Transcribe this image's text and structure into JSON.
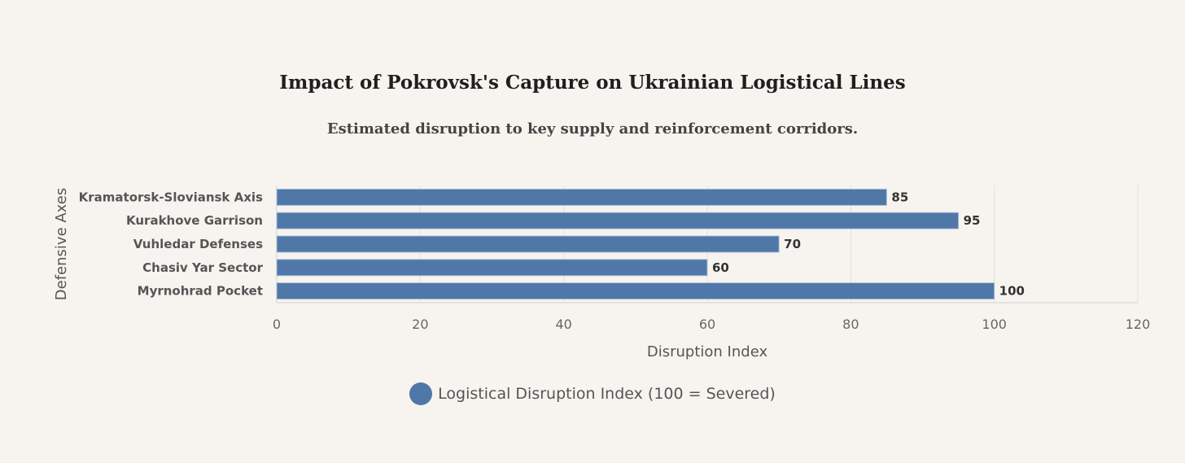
{
  "chart_data": {
    "type": "bar",
    "orientation": "horizontal",
    "title": "Impact of Pokrovsk's Capture on Ukrainian Logistical Lines",
    "subtitle": "Estimated disruption to key supply and reinforcement corridors.",
    "xlabel": "Disruption Index",
    "ylabel": "Defensive Axes",
    "categories": [
      "Kramatorsk-Sloviansk Axis",
      "Kurakhove Garrison",
      "Vuhledar Defenses",
      "Chasiv Yar Sector",
      "Myrnohrad Pocket"
    ],
    "series": [
      {
        "name": "Logistical Disruption Index (100 = Severed)",
        "values": [
          85,
          95,
          70,
          60,
          100
        ],
        "color": "#4f77a8"
      }
    ],
    "xlim": [
      0,
      120
    ],
    "xticks": [
      0,
      20,
      40,
      60,
      80,
      100,
      120
    ],
    "grid": true,
    "legend_position": "bottom",
    "data_labels": true
  }
}
